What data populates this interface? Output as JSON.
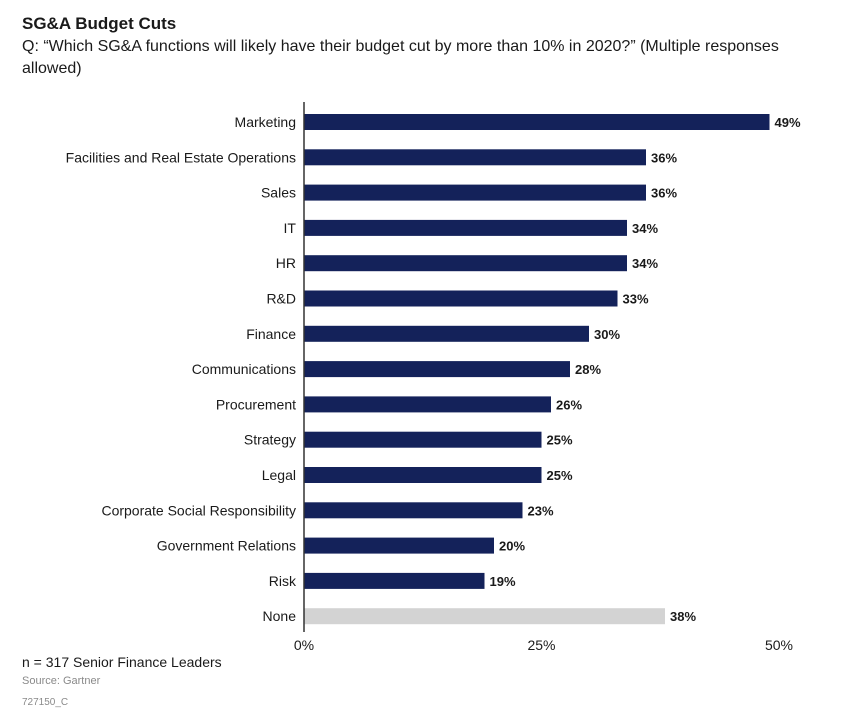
{
  "header": {
    "title": "SG&A Budget Cuts",
    "question": "Q: “Which SG&A functions will likely have their budget cut by more than 10% in 2020?” (Multiple responses allowed)"
  },
  "chart_data": {
    "type": "bar",
    "orientation": "horizontal",
    "categories": [
      "Marketing",
      "Facilities and Real Estate Operations",
      "Sales",
      "IT",
      "HR",
      "R&D",
      "Finance",
      "Communications",
      "Procurement",
      "Strategy",
      "Legal",
      "Corporate Social Responsibility",
      "Government Relations",
      "Risk",
      "None"
    ],
    "values": [
      49,
      36,
      36,
      34,
      34,
      33,
      30,
      28,
      26,
      25,
      25,
      23,
      20,
      19,
      38
    ],
    "value_labels": [
      "49%",
      "36%",
      "36%",
      "34%",
      "34%",
      "33%",
      "30%",
      "28%",
      "26%",
      "25%",
      "25%",
      "23%",
      "20%",
      "19%",
      "38%"
    ],
    "xlim": [
      0,
      50
    ],
    "xticks": [
      "0%",
      "25%",
      "50%"
    ],
    "grid": false,
    "colors": {
      "bar": "#14225a",
      "none_bar": "#d3d3d3",
      "axis": "#333333"
    }
  },
  "footer": {
    "sample_note": "n = 317 Senior Finance Leaders",
    "source": "Source: Gartner",
    "code": "727150_C"
  }
}
